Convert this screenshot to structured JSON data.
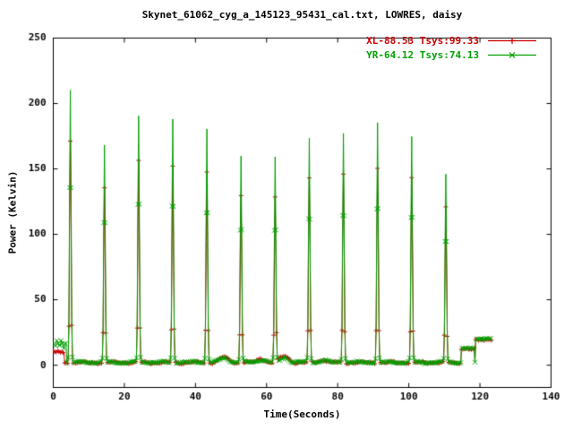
{
  "chart_data": {
    "type": "line",
    "title": "Skynet_61062_cyg_a_145123_95431_cal.txt, LOWRES, daisy",
    "xlabel": "Time(Seconds)",
    "ylabel": "Power (Kelvin)",
    "xlim": [
      0,
      140
    ],
    "ylim": [
      -17,
      250
    ],
    "xticks": [
      0,
      20,
      40,
      60,
      80,
      100,
      120,
      140
    ],
    "yticks": [
      0,
      50,
      100,
      150,
      200,
      250
    ],
    "grid": false,
    "legend_position": "top-right",
    "series": [
      {
        "name": "XL-88.53 Tsys:99.33",
        "color": "#cc0000",
        "marker": "plus",
        "baseline": 2.0,
        "start_segment": {
          "t_start": 0,
          "t_end": 3.0,
          "level": 10
        },
        "end_segments": [
          {
            "t_start": 114.8,
            "t_end": 118.4,
            "level": 12.5
          },
          {
            "t_start": 118.8,
            "t_end": 123.2,
            "level": 19.3
          }
        ],
        "bumps": [
          {
            "t": 48.0,
            "amp": 4.0,
            "width": 1.8
          },
          {
            "t": 58.5,
            "amp": 3.0,
            "width": 1.5
          },
          {
            "t": 65.0,
            "amp": 5.0,
            "width": 1.6
          },
          {
            "t": 76.0,
            "amp": 2.0,
            "width": 1.5
          }
        ],
        "peak_times": [
          4.8,
          14.4,
          24.0,
          33.6,
          43.2,
          52.8,
          62.4,
          72.0,
          81.6,
          91.2,
          100.8,
          110.4
        ],
        "peak_heights": [
          172,
          135,
          156,
          152,
          148,
          130,
          128,
          142,
          146,
          151,
          143,
          120
        ]
      },
      {
        "name": "YR-64.12 Tsys:74.13",
        "color": "#00a000",
        "marker": "cross",
        "baseline": 2.2,
        "start_segment": {
          "t_start": 0,
          "t_end": 3.6,
          "level": 16
        },
        "end_segments": [
          {
            "t_start": 114.8,
            "t_end": 118.4,
            "level": 13
          },
          {
            "t_start": 118.8,
            "t_end": 123.2,
            "level": 20
          }
        ],
        "bumps": [
          {
            "t": 48.0,
            "amp": 3.0,
            "width": 1.8
          },
          {
            "t": 58.5,
            "amp": 2.0,
            "width": 1.5
          },
          {
            "t": 65.0,
            "amp": 3.5,
            "width": 1.6
          },
          {
            "t": 76.0,
            "amp": 1.5,
            "width": 1.5
          }
        ],
        "peak_times": [
          4.8,
          14.4,
          24.0,
          33.6,
          43.2,
          52.8,
          62.4,
          72.0,
          81.6,
          91.2,
          100.8,
          110.4
        ],
        "peak_heights": [
          210,
          168,
          190,
          188,
          181,
          160,
          158,
          173,
          178,
          185,
          174,
          146
        ]
      }
    ]
  }
}
